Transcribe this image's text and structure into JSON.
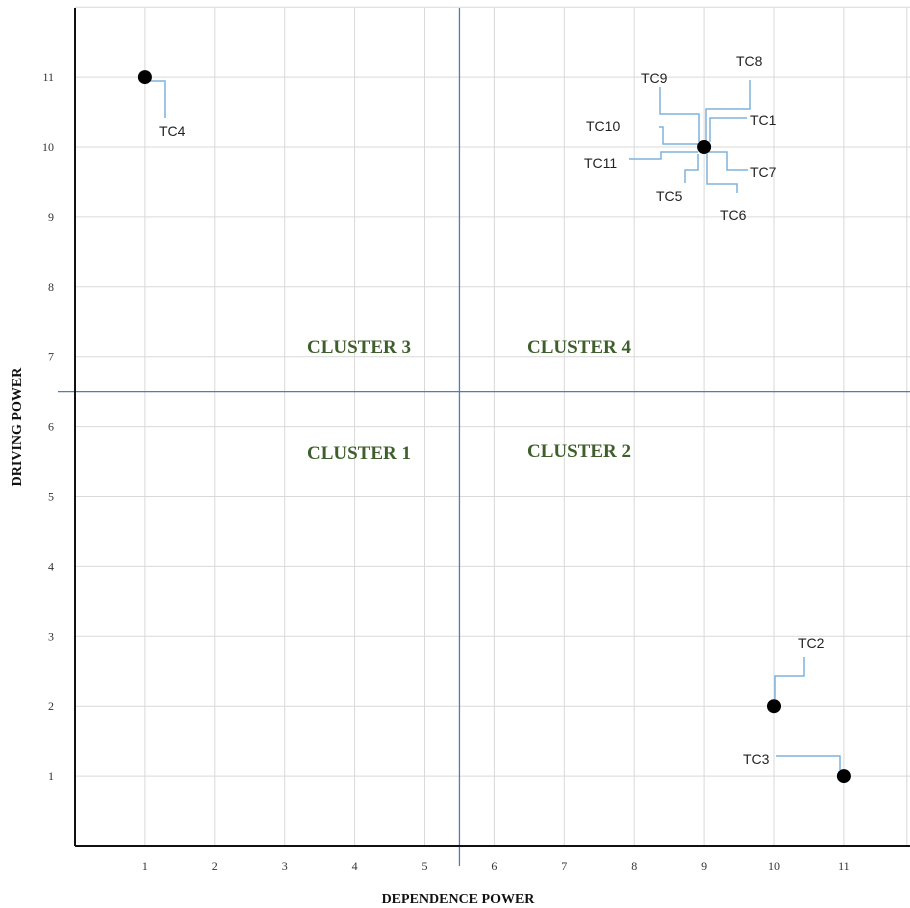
{
  "chart_data": {
    "type": "scatter",
    "title": "",
    "xlabel": "DEPENDENCE POWER",
    "ylabel": "DRIVING POWER",
    "xlim": [
      0,
      11.9
    ],
    "ylim": [
      0,
      12
    ],
    "xticks": [
      1,
      2,
      3,
      4,
      5,
      6,
      7,
      8,
      9,
      10,
      11
    ],
    "yticks": [
      1,
      2,
      3,
      4,
      5,
      6,
      7,
      8,
      9,
      10,
      11
    ],
    "x_divider": 5.5,
    "y_divider": 6.5,
    "grid": true,
    "points": [
      {
        "x": 1,
        "y": 11,
        "labels": [
          "TC4"
        ]
      },
      {
        "x": 9,
        "y": 10,
        "labels": [
          "TC1",
          "TC5",
          "TC6",
          "TC7",
          "TC8",
          "TC9",
          "TC10",
          "TC11"
        ]
      },
      {
        "x": 10,
        "y": 2,
        "labels": [
          "TC2"
        ]
      },
      {
        "x": 11,
        "y": 1,
        "labels": [
          "TC3"
        ]
      }
    ],
    "clusters": [
      {
        "name": "CLUSTER 1",
        "quadrant": "bottom-left"
      },
      {
        "name": "CLUSTER 2",
        "quadrant": "bottom-right"
      },
      {
        "name": "CLUSTER 3",
        "quadrant": "top-left"
      },
      {
        "name": "CLUSTER 4",
        "quadrant": "top-right"
      }
    ]
  },
  "colors": {
    "divider": "#4f7eb0",
    "leader": "#7fb2dc",
    "cluster_text": "#3e5f2b",
    "point": "#000000",
    "grid": "#d9d9d9"
  }
}
